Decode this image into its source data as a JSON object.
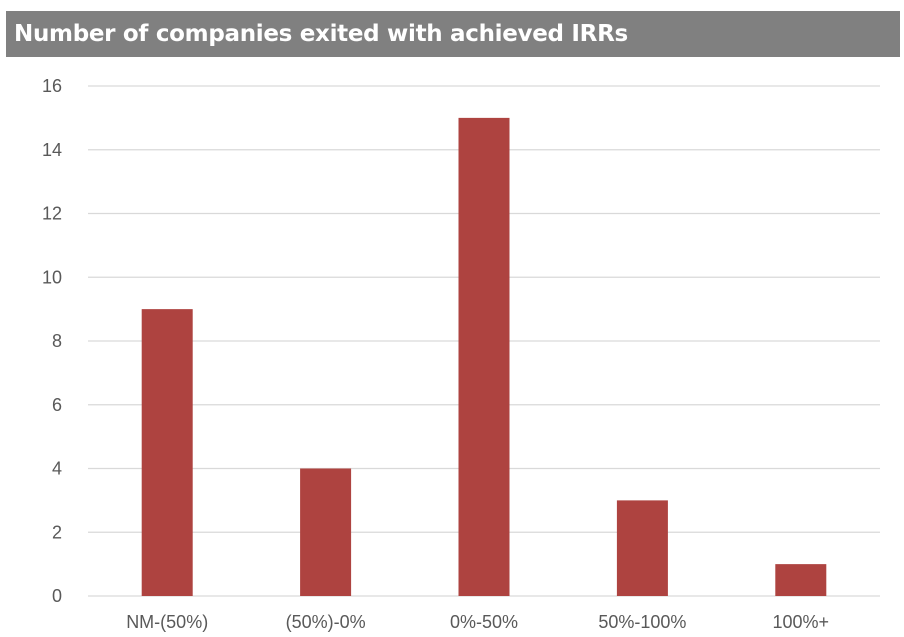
{
  "chart_data": {
    "type": "bar",
    "title": "Number of companies exited with achieved IRRs",
    "xlabel": "",
    "ylabel": "",
    "categories": [
      "NM-(50%)",
      "(50%)-0%",
      "0%-50%",
      "50%-100%",
      "100%+"
    ],
    "values": [
      9,
      4,
      15,
      3,
      1
    ],
    "ylim": [
      0,
      16
    ],
    "yticks": [
      0,
      2,
      4,
      6,
      8,
      10,
      12,
      14,
      16
    ],
    "grid": true,
    "legend": "none",
    "colors": {
      "bar": "#AE4340",
      "gridline": "#D9D9D9",
      "title_background": "#808080",
      "title_text": "#FFFFFF",
      "tick_text": "#595959"
    }
  }
}
